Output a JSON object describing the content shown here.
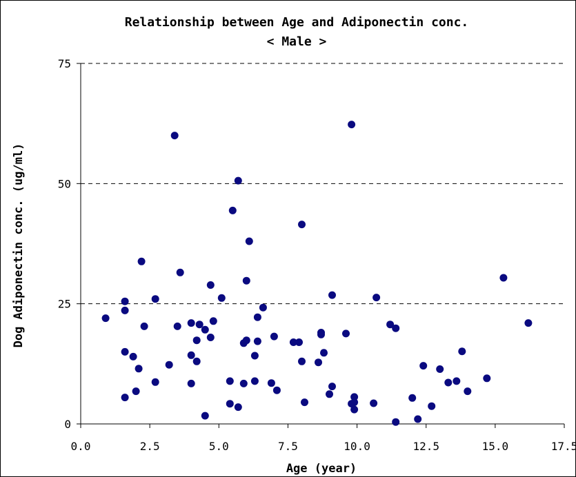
{
  "chart_data": {
    "type": "scatter",
    "title": "Relationship between Age and Adiponectin conc.",
    "subtitle": "< Male >",
    "xlabel": "Age (year)",
    "ylabel": "Dog Adiponectin conc. (ug/ml)",
    "xlim": [
      0,
      17.5
    ],
    "ylim": [
      0,
      75
    ],
    "xticks": [
      "0.0",
      "2.5",
      "5.0",
      "7.5",
      "10.0",
      "12.5",
      "15.0",
      "17.5"
    ],
    "yticks": [
      "0",
      "25",
      "50",
      "75"
    ],
    "grid": "horizontal dashed",
    "marker_color": "#0a0a80",
    "points": [
      [
        0.9,
        22.0
      ],
      [
        1.6,
        25.5
      ],
      [
        1.6,
        23.6
      ],
      [
        1.6,
        15.0
      ],
      [
        1.6,
        5.5
      ],
      [
        1.9,
        14.0
      ],
      [
        2.0,
        6.8
      ],
      [
        2.1,
        11.5
      ],
      [
        2.2,
        33.8
      ],
      [
        2.3,
        20.3
      ],
      [
        2.7,
        26.0
      ],
      [
        2.7,
        8.7
      ],
      [
        3.2,
        12.3
      ],
      [
        3.4,
        60.0
      ],
      [
        3.5,
        20.3
      ],
      [
        3.6,
        31.5
      ],
      [
        4.0,
        21.0
      ],
      [
        4.0,
        14.3
      ],
      [
        4.0,
        8.4
      ],
      [
        4.2,
        17.4
      ],
      [
        4.2,
        13.0
      ],
      [
        4.3,
        20.7
      ],
      [
        4.5,
        19.6
      ],
      [
        4.5,
        1.7
      ],
      [
        4.7,
        28.9
      ],
      [
        4.7,
        18.0
      ],
      [
        4.8,
        21.4
      ],
      [
        5.1,
        26.2
      ],
      [
        5.4,
        8.9
      ],
      [
        5.4,
        4.2
      ],
      [
        5.5,
        44.4
      ],
      [
        5.7,
        50.6
      ],
      [
        5.7,
        3.5
      ],
      [
        5.9,
        16.8
      ],
      [
        5.9,
        8.4
      ],
      [
        6.0,
        29.8
      ],
      [
        6.0,
        17.4
      ],
      [
        6.1,
        38.0
      ],
      [
        6.3,
        14.2
      ],
      [
        6.3,
        8.9
      ],
      [
        6.4,
        22.2
      ],
      [
        6.4,
        17.2
      ],
      [
        6.6,
        24.2
      ],
      [
        6.9,
        8.5
      ],
      [
        7.0,
        18.2
      ],
      [
        7.1,
        7.0
      ],
      [
        7.7,
        17.0
      ],
      [
        7.9,
        17.0
      ],
      [
        8.0,
        41.5
      ],
      [
        8.0,
        13.0
      ],
      [
        8.1,
        4.5
      ],
      [
        8.6,
        12.8
      ],
      [
        8.7,
        19.0
      ],
      [
        8.7,
        18.6
      ],
      [
        8.8,
        14.8
      ],
      [
        9.0,
        6.2
      ],
      [
        9.1,
        26.8
      ],
      [
        9.1,
        7.8
      ],
      [
        9.6,
        18.8
      ],
      [
        9.8,
        62.3
      ],
      [
        9.8,
        4.2
      ],
      [
        9.9,
        5.6
      ],
      [
        9.9,
        4.5
      ],
      [
        9.9,
        3.0
      ],
      [
        10.6,
        4.3
      ],
      [
        10.7,
        26.3
      ],
      [
        11.2,
        20.7
      ],
      [
        11.4,
        19.9
      ],
      [
        11.4,
        0.4
      ],
      [
        12.0,
        5.4
      ],
      [
        12.2,
        1.0
      ],
      [
        12.4,
        12.1
      ],
      [
        12.7,
        3.7
      ],
      [
        13.0,
        11.4
      ],
      [
        13.3,
        8.6
      ],
      [
        13.6,
        8.9
      ],
      [
        13.8,
        15.1
      ],
      [
        14.0,
        6.8
      ],
      [
        14.7,
        9.5
      ],
      [
        15.3,
        30.4
      ],
      [
        16.2,
        21.0
      ]
    ]
  }
}
